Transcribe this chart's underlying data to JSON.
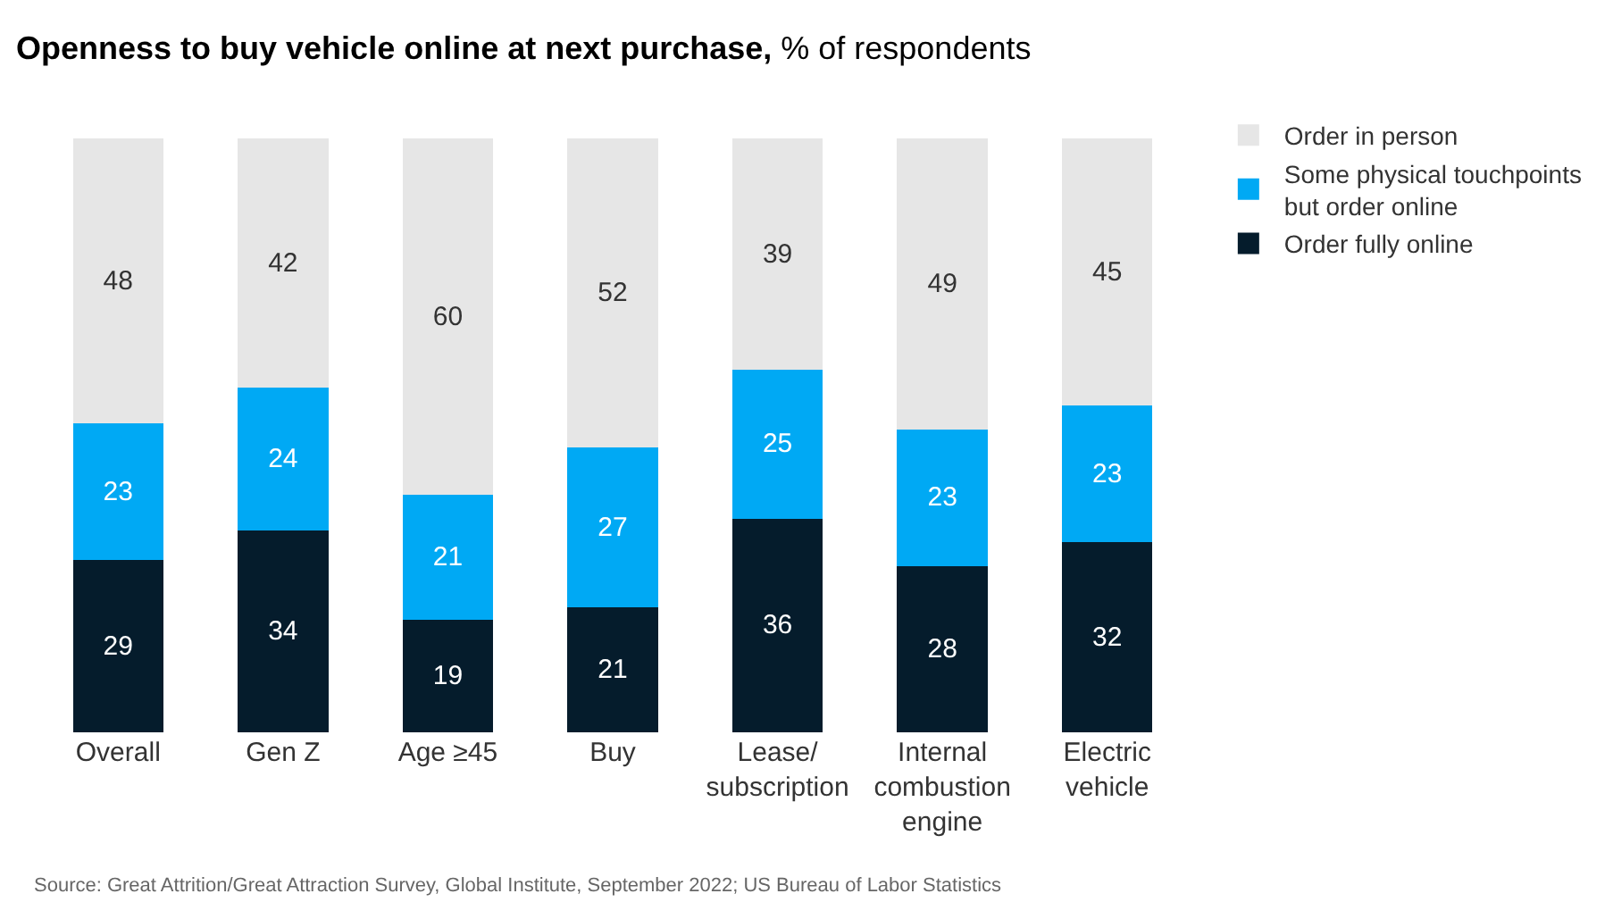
{
  "chart_data": {
    "type": "bar",
    "stacked": true,
    "data_labels": true,
    "legend": "top right",
    "title": "Openness to buy vehicle online at next purchase,",
    "subtitle": "% of respondents",
    "categories": [
      "Overall",
      "Gen Z",
      "Age ≥45",
      "Buy",
      "Lease/subscription",
      "Internal combustion engine",
      "Electric vehicle"
    ],
    "series": [
      {
        "name": "Order fully online",
        "color": "#051c2c",
        "values": [
          29,
          34,
          19,
          21,
          36,
          28,
          32
        ]
      },
      {
        "name": "Some physical touchpoints but order online",
        "color": "#00a9f4",
        "values": [
          23,
          24,
          21,
          27,
          25,
          23,
          23
        ]
      },
      {
        "name": "Order in person",
        "color": "#e6e6e6",
        "values": [
          48,
          42,
          60,
          52,
          39,
          49,
          45
        ]
      }
    ],
    "annotations": [
      "Source: Great Attrition/Great Attraction Survey, Global Institute, September 2022; US Bureau of Labor Statistics"
    ]
  }
}
